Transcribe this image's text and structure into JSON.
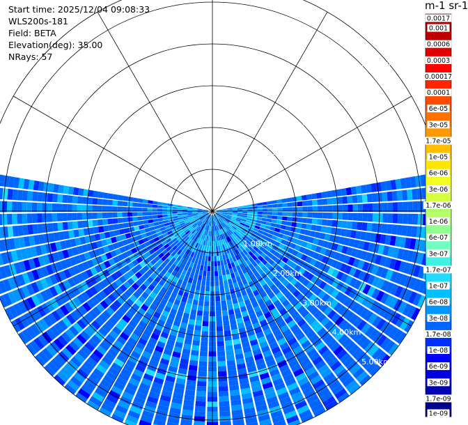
{
  "header": {
    "lines": [
      "Start time: 2025/12/04 09:08:33",
      "WLS200s-181",
      "Field: BETA",
      "Elevation(deg): 35.00",
      "NRays: 57"
    ]
  },
  "chart_data": {
    "type": "heatmap",
    "subtype": "polar-ppi",
    "title": "",
    "field": "BETA",
    "nrays": 57,
    "azimuth_range_deg": [
      -10,
      190
    ],
    "range_ring_labels": [
      "1.00km",
      "2.00km",
      "3.00km",
      "4.00km",
      "5.00km"
    ],
    "range_rings_km": [
      1,
      2,
      3,
      4,
      5
    ],
    "max_range_km": 5.5,
    "colorbar": {
      "title": "m-1 sr-1",
      "levels": [
        "1e-09",
        "1.7e-09",
        "3e-09",
        "6e-09",
        "1e-08",
        "1.7e-08",
        "3e-08",
        "6e-08",
        "1e-07",
        "1.7e-07",
        "3e-07",
        "6e-07",
        "1e-06",
        "1.7e-06",
        "3e-06",
        "6e-06",
        "1e-05",
        "1.7e-05",
        "3e-05",
        "6e-05",
        "0.0001",
        "0.00017",
        "0.0003",
        "0.0006",
        "0.001",
        "0.0017"
      ],
      "colors": [
        "#00008b",
        "#0000b4",
        "#0000dc",
        "#0000ff",
        "#0030ff",
        "#0064ff",
        "#0096ff",
        "#00c0ff",
        "#22dcff",
        "#40f0e0",
        "#70ffc0",
        "#90ff90",
        "#b4ff6a",
        "#d6ff40",
        "#f2ff20",
        "#ffe600",
        "#ffbf00",
        "#ff9900",
        "#ff7200",
        "#ff4c00",
        "#ff2600",
        "#ff0000",
        "#e00000",
        "#c00000",
        "#a00000"
      ]
    },
    "dominant_level_range": [
      "1e-08",
      "1e-07"
    ]
  },
  "colors": {
    "grid": "#000000",
    "ring_label": "#ffffff"
  }
}
